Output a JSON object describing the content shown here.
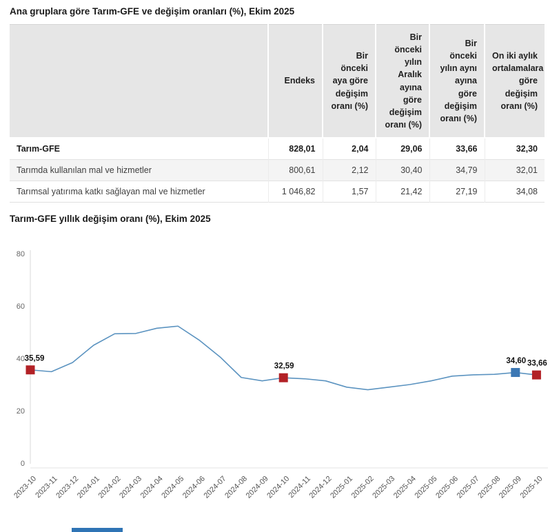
{
  "table_section": {
    "title": "Ana gruplara göre Tarım-GFE ve değişim oranları (%), Ekim 2025",
    "columns": [
      "",
      "Endeks",
      "Bir önceki aya göre değişim oranı (%)",
      "Bir önceki yılın Aralık ayına göre değişim oranı (%)",
      "Bir önceki yılın aynı ayına göre değişim oranı (%)",
      "On iki aylık ortalamalara göre değişim oranı (%)"
    ],
    "rows": [
      {
        "label": "Tarım-GFE",
        "bold": true,
        "values": [
          "828,01",
          "2,04",
          "29,06",
          "33,66",
          "32,30"
        ]
      },
      {
        "label": "Tarımda kullanılan mal ve hizmetler",
        "bold": false,
        "values": [
          "800,61",
          "2,12",
          "30,40",
          "34,79",
          "32,01"
        ]
      },
      {
        "label": "Tarımsal yatırıma katkı sağlayan mal ve hizmetler",
        "bold": false,
        "values": [
          "1 046,82",
          "1,57",
          "21,42",
          "27,19",
          "34,08"
        ]
      }
    ]
  },
  "chart_section": {
    "title": "Tarım-GFE yıllık değişim oranı (%), Ekim 2025"
  },
  "chart_data": {
    "type": "line",
    "title": "Tarım-GFE yıllık değişim oranı (%), Ekim 2025",
    "x": [
      "2023-10",
      "2023-11",
      "2023-12",
      "2024-01",
      "2024-02",
      "2024-03",
      "2024-04",
      "2024-05",
      "2024-06",
      "2024-07",
      "2024-08",
      "2024-09",
      "2024-10",
      "2024-11",
      "2024-12",
      "2025-01",
      "2025-02",
      "2025-03",
      "2025-04",
      "2025-05",
      "2025-06",
      "2025-07",
      "2025-08",
      "2025-09",
      "2025-10"
    ],
    "series": [
      {
        "name": "Tarım-GFE yıllık değişim oranı (%)",
        "values": [
          35.59,
          34.9,
          38.4,
          45.0,
          49.4,
          49.5,
          51.5,
          52.3,
          47.0,
          40.5,
          32.7,
          31.4,
          32.59,
          32.2,
          31.4,
          29.0,
          28.0,
          29.0,
          30.0,
          31.4,
          33.2,
          33.7,
          33.9,
          34.6,
          33.66
        ]
      }
    ],
    "ylim": [
      0,
      80
    ],
    "yticks": [
      0,
      20,
      40,
      60,
      80
    ],
    "grid": false,
    "legend": "none",
    "line_color": "#5b93c0",
    "axis_color": "#d9d9d9",
    "tick_label_color": "#666666",
    "markers": [
      {
        "x": "2023-10",
        "index": 0,
        "value": 35.59,
        "label": "35,59",
        "color": "#b22126"
      },
      {
        "x": "2024-10",
        "index": 12,
        "value": 32.59,
        "label": "32,59",
        "color": "#b22126"
      },
      {
        "x": "2025-09",
        "index": 23,
        "value": 34.6,
        "label": "34,60",
        "color": "#3c78b4"
      },
      {
        "x": "2025-10",
        "index": 24,
        "value": 33.66,
        "label": "33,66",
        "color": "#b22126"
      }
    ]
  },
  "footer": {
    "partial_blue_bar_color": "#2f74b5"
  }
}
